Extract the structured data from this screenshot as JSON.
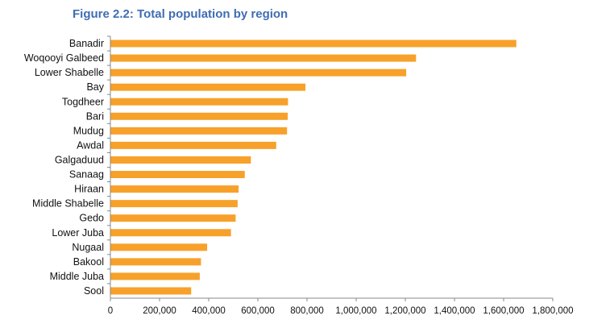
{
  "chart_data": {
    "type": "bar",
    "orientation": "horizontal",
    "title": "Figure 2.2: Total population by region",
    "categories": [
      "Banadir",
      "Woqooyi Galbeed",
      "Lower Shabelle",
      "Bay",
      "Togdheer",
      "Bari",
      "Mudug",
      "Awdal",
      "Galgaduud",
      "Sanaag",
      "Hiraan",
      "Middle Shabelle",
      "Gedo",
      "Lower Juba",
      "Nugaal",
      "Bakool",
      "Middle Juba",
      "Sool"
    ],
    "values": [
      1650000,
      1242000,
      1202000,
      792000,
      721000,
      720000,
      717000,
      673000,
      570000,
      545000,
      520000,
      516000,
      508000,
      489000,
      392000,
      367000,
      362000,
      327000
    ],
    "xlim": [
      0,
      1800000
    ],
    "x_ticks": [
      0,
      200000,
      400000,
      600000,
      800000,
      1000000,
      1200000,
      1400000,
      1600000,
      1800000
    ],
    "x_tick_labels": [
      "0",
      "200,000",
      "400,000",
      "600,000",
      "800,000",
      "1,000,000",
      "1,200,000",
      "1,400,000",
      "1,600,000",
      "1,800,000"
    ],
    "bar_color": "#f7a12a",
    "grid": false,
    "legend": "none"
  }
}
